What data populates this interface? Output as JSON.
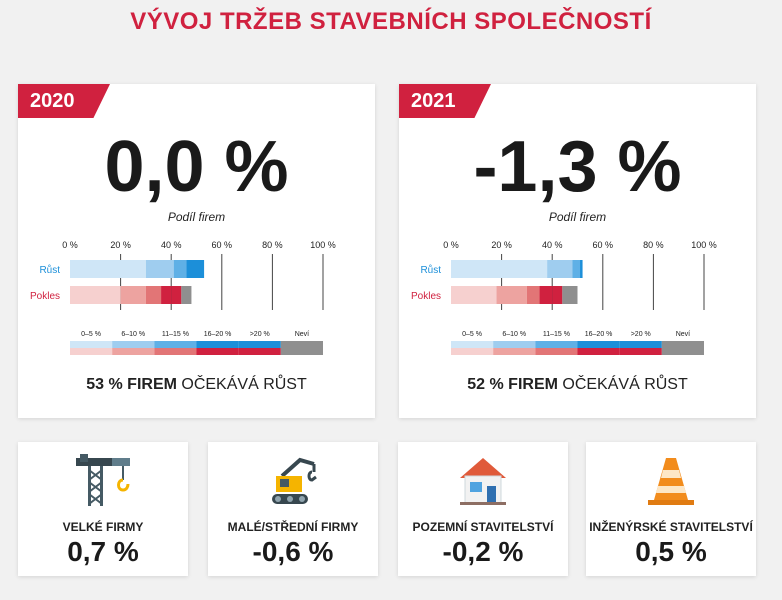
{
  "title": "VÝVOJ TRŽEB STAVEBNÍCH SPOLEČNOSTÍ",
  "years": [
    {
      "year": "2020",
      "value": "0,0 %",
      "share_label": "Podíl firem",
      "footer_bold": "53 % FIREM",
      "footer_rest": " OČEKÁVÁ RŮST"
    },
    {
      "year": "2021",
      "value": "-1,3 %",
      "share_label": "Podíl firem",
      "footer_bold": "52 % FIREM",
      "footer_rest": " OČEKÁVÁ RŮST"
    }
  ],
  "categories": [
    {
      "label": "VELKÉ FIRMY",
      "value": "0,7 %",
      "icon": "crane-icon"
    },
    {
      "label": "MALÉ/STŘEDNÍ FIRMY",
      "value": "-0,6 %",
      "icon": "excavator-icon"
    },
    {
      "label": "POZEMNÍ STAVITELSTVÍ",
      "value": "-0,2 %",
      "icon": "house-icon"
    },
    {
      "label": "INŽENÝRSKÉ STAVITELSTVÍ",
      "value": "0,5 %",
      "icon": "traffic-cone-icon"
    }
  ],
  "colors": {
    "brand": "#d0213f",
    "rust": [
      "#cfe6f7",
      "#9fcdef",
      "#5fb0e6",
      "#1c8fd9"
    ],
    "pokles": [
      "#f6d0cf",
      "#eda3a0",
      "#e27576",
      "#d0213f"
    ],
    "nevi": "#8f8f8f"
  },
  "chart_data": [
    {
      "type": "bar",
      "title": "2020",
      "xlabel": "Podíl firem",
      "xticks": [
        "0 %",
        "20 %",
        "40 %",
        "60 %",
        "80 %",
        "100 %"
      ],
      "xlim": [
        0,
        100
      ],
      "categories": [
        "Růst",
        "Pokles"
      ],
      "legend": [
        "0–5 %",
        "6–10 %",
        "11–15 %",
        "16–20 %",
        ">20 %",
        "Neví"
      ],
      "series": [
        {
          "name": "0–5 %",
          "values": [
            30,
            20
          ]
        },
        {
          "name": "6–10 %",
          "values": [
            11,
            10
          ]
        },
        {
          "name": "11–15 %",
          "values": [
            5,
            6
          ]
        },
        {
          "name": "16–20 %",
          "values": [
            7,
            4
          ]
        },
        {
          "name": ">20 %",
          "values": [
            0,
            4
          ]
        },
        {
          "name": "Neví",
          "values": [
            0,
            4
          ]
        }
      ]
    },
    {
      "type": "bar",
      "title": "2021",
      "xlabel": "Podíl firem",
      "xticks": [
        "0 %",
        "20 %",
        "40 %",
        "60 %",
        "80 %",
        "100 %"
      ],
      "xlim": [
        0,
        100
      ],
      "categories": [
        "Růst",
        "Pokles"
      ],
      "legend": [
        "0–5 %",
        "6–10 %",
        "11–15 %",
        "16–20 %",
        ">20 %",
        "Neví"
      ],
      "series": [
        {
          "name": "0–5 %",
          "values": [
            38,
            18
          ]
        },
        {
          "name": "6–10 %",
          "values": [
            10,
            12
          ]
        },
        {
          "name": "11–15 %",
          "values": [
            3,
            5
          ]
        },
        {
          "name": "16–20 %",
          "values": [
            1,
            5
          ]
        },
        {
          "name": ">20 %",
          "values": [
            0,
            4
          ]
        },
        {
          "name": "Neví",
          "values": [
            0,
            6
          ]
        }
      ]
    }
  ]
}
